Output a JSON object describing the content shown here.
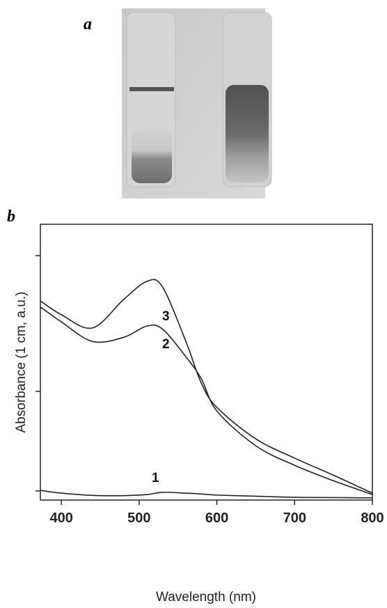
{
  "figure": {
    "panel_a_label": "a"
  },
  "chart_data": {
    "type": "line",
    "panel_label": "b",
    "xlabel": "Wavelength (nm)",
    "ylabel": "Absorbance (1 cm, a.u.)",
    "x": [
      373,
      400,
      440,
      480,
      510,
      530,
      560,
      580,
      600,
      650,
      700,
      750,
      800
    ],
    "series": [
      {
        "name": "1",
        "color": "#222222",
        "values": [
          0.035,
          0.025,
          0.017,
          0.016,
          0.02,
          0.028,
          0.025,
          0.022,
          0.018,
          0.014,
          0.01,
          0.009,
          0.008
        ]
      },
      {
        "name": "2",
        "color": "#222222",
        "values": [
          0.7,
          0.646,
          0.575,
          0.59,
          0.631,
          0.62,
          0.52,
          0.44,
          0.323,
          0.197,
          0.126,
          0.07,
          0.02
        ]
      },
      {
        "name": "3",
        "color": "#222222",
        "values": [
          0.722,
          0.672,
          0.624,
          0.727,
          0.793,
          0.773,
          0.576,
          0.424,
          0.336,
          0.222,
          0.152,
          0.09,
          0.025
        ]
      }
    ],
    "xlim": [
      373,
      800
    ],
    "xticks": [
      400,
      500,
      600,
      700,
      800
    ],
    "ylim": [
      0,
      1
    ],
    "yticks": [
      0.033,
      0.394,
      0.886
    ]
  }
}
